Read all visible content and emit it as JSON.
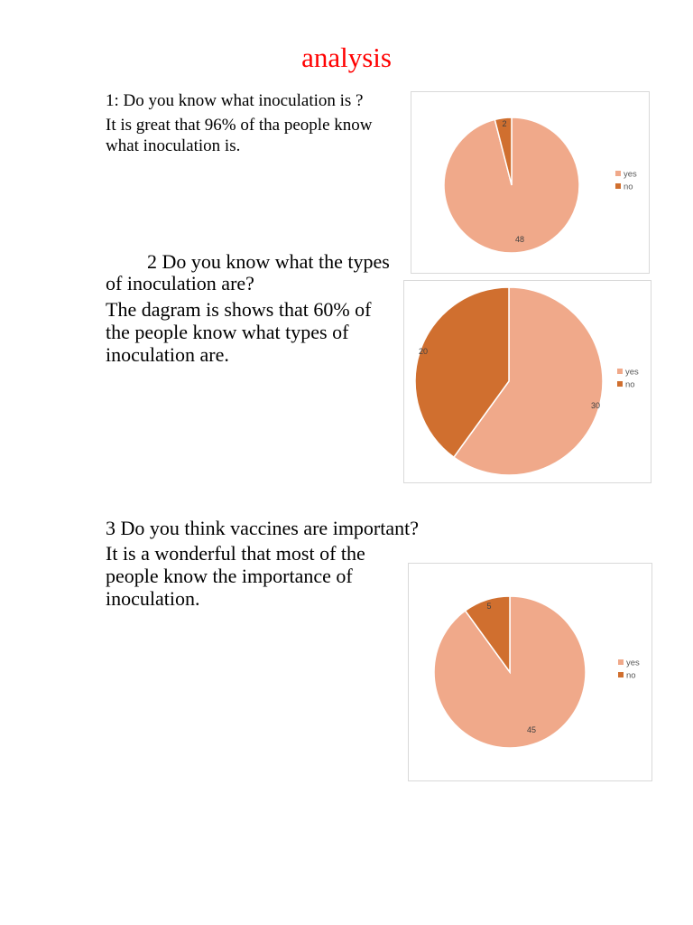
{
  "page": {
    "title": "analysis",
    "title_color": "#ff0000"
  },
  "questions": [
    {
      "heading": "1: Do you know what inoculation is ?",
      "body": "It is great that 96% of tha people know what inoculation is."
    },
    {
      "heading": "2 Do you know what the types of inoculation are?",
      "body": "The dagram is shows that 60% of the people know what types of inoculation are."
    },
    {
      "heading": "3 Do you think vaccines are important?",
      "body": "It is a wonderful that most of the people know the importance of inoculation."
    }
  ],
  "colors": {
    "yes": "#f0a98a",
    "no": "#d06f2f"
  },
  "chart_data": [
    {
      "type": "pie",
      "categories": [
        "yes",
        "no"
      ],
      "values": [
        48,
        2
      ],
      "legend": [
        "yes",
        "no"
      ],
      "legend_position": "right"
    },
    {
      "type": "pie",
      "categories": [
        "yes",
        "no"
      ],
      "values": [
        30,
        20
      ],
      "legend": [
        "yes",
        "no"
      ],
      "legend_position": "right"
    },
    {
      "type": "pie",
      "categories": [
        "yes",
        "no"
      ],
      "values": [
        45,
        5
      ],
      "legend": [
        "yes",
        "no"
      ],
      "legend_position": "right"
    }
  ]
}
